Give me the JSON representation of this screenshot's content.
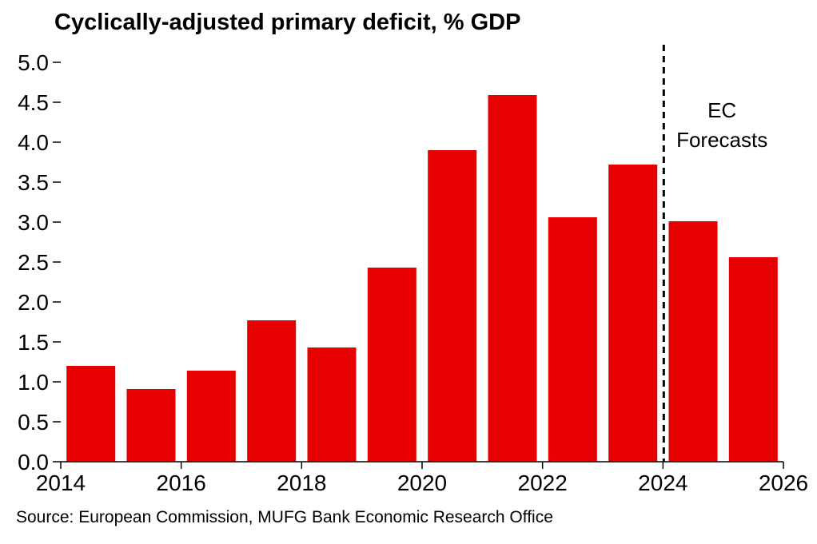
{
  "title": "Cyclically-adjusted primary deficit, % GDP",
  "source": "Source: European Commission, MUFG Bank Economic Research Office",
  "annotation": {
    "line1": "EC",
    "line2": "Forecasts"
  },
  "colors": {
    "bar": "#e60000",
    "axis": "#000000"
  },
  "chart_data": {
    "type": "bar",
    "title": "Cyclically-adjusted primary deficit, % GDP",
    "categories": [
      "2014",
      "2015",
      "2016",
      "2017",
      "2018",
      "2019",
      "2020",
      "2021",
      "2022",
      "2023",
      "2024",
      "2025"
    ],
    "values": [
      1.2,
      0.91,
      1.14,
      1.77,
      1.43,
      2.43,
      3.9,
      4.59,
      3.06,
      3.72,
      3.01,
      2.56
    ],
    "forecast_from": "2024",
    "ylim": [
      0,
      5.0
    ],
    "yticks": [
      "0.0",
      "0.5",
      "1.0",
      "1.5",
      "2.0",
      "2.5",
      "3.0",
      "3.5",
      "4.0",
      "4.5",
      "5.0"
    ],
    "xticks": [
      "2014",
      "2016",
      "2018",
      "2020",
      "2022",
      "2024",
      "2026"
    ],
    "xlabel": "",
    "ylabel": "",
    "grid": false,
    "legend": "none"
  }
}
